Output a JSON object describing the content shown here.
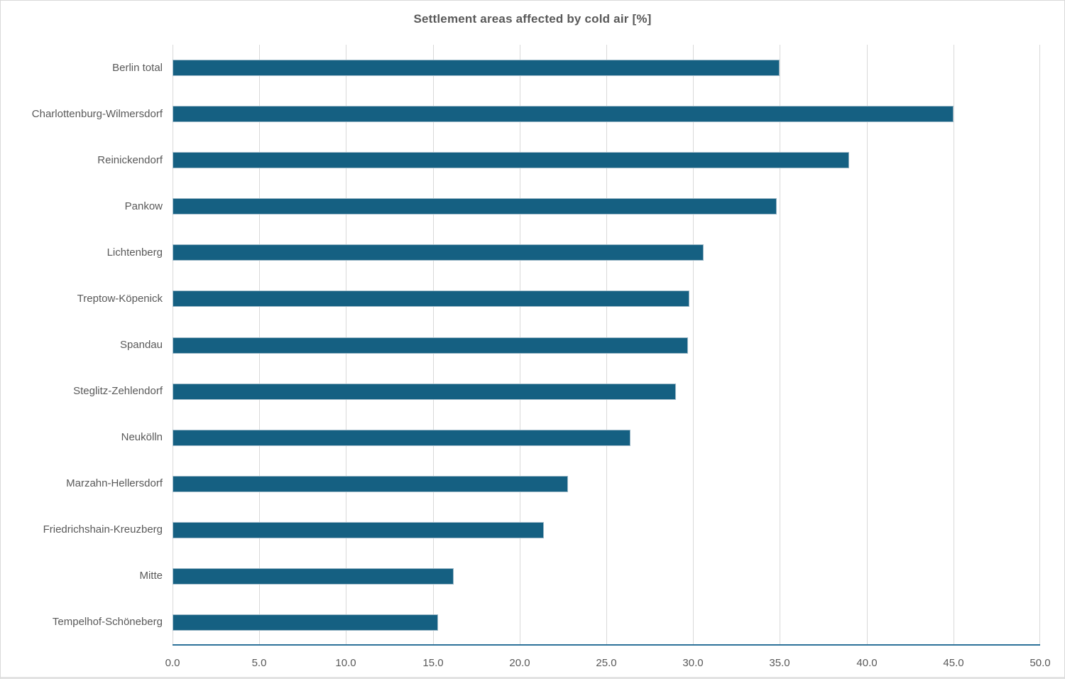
{
  "window": {
    "background": "#ffffff",
    "border_color": "#d9d9d9"
  },
  "chart_data": {
    "type": "bar",
    "orientation": "horizontal",
    "title": "Settlement areas affected by cold air [%]",
    "categories": [
      "Berlin total",
      "Charlottenburg-Wilmersdorf",
      "Reinickendorf",
      "Pankow",
      "Lichtenberg",
      "Treptow-Köpenick",
      "Spandau",
      "Steglitz-Zehlendorf",
      "Neukölln",
      "Marzahn-Hellersdorf",
      "Friedrichshain-Kreuzberg",
      "Mitte",
      "Tempelhof-Schöneberg"
    ],
    "values": [
      35.0,
      45.0,
      39.0,
      34.8,
      30.6,
      29.8,
      29.7,
      29.0,
      26.4,
      22.8,
      21.4,
      16.2,
      15.3
    ],
    "xlabel": "",
    "ylabel": "",
    "xlim": [
      0,
      50
    ],
    "xticks": [
      0,
      5,
      10,
      15,
      20,
      25,
      30,
      35,
      40,
      45,
      50
    ],
    "xtick_labels": [
      "0.0",
      "5.0",
      "10.0",
      "15.0",
      "20.0",
      "25.0",
      "30.0",
      "35.0",
      "40.0",
      "45.0",
      "50.0"
    ],
    "grid": "vertical-only",
    "legend": "none",
    "colors": {
      "bar_fill": "#156082",
      "bar_edge": "#9db9c8",
      "gridline": "#d9d9d9",
      "axis_line": "#2c7199",
      "text": "#595959"
    }
  }
}
